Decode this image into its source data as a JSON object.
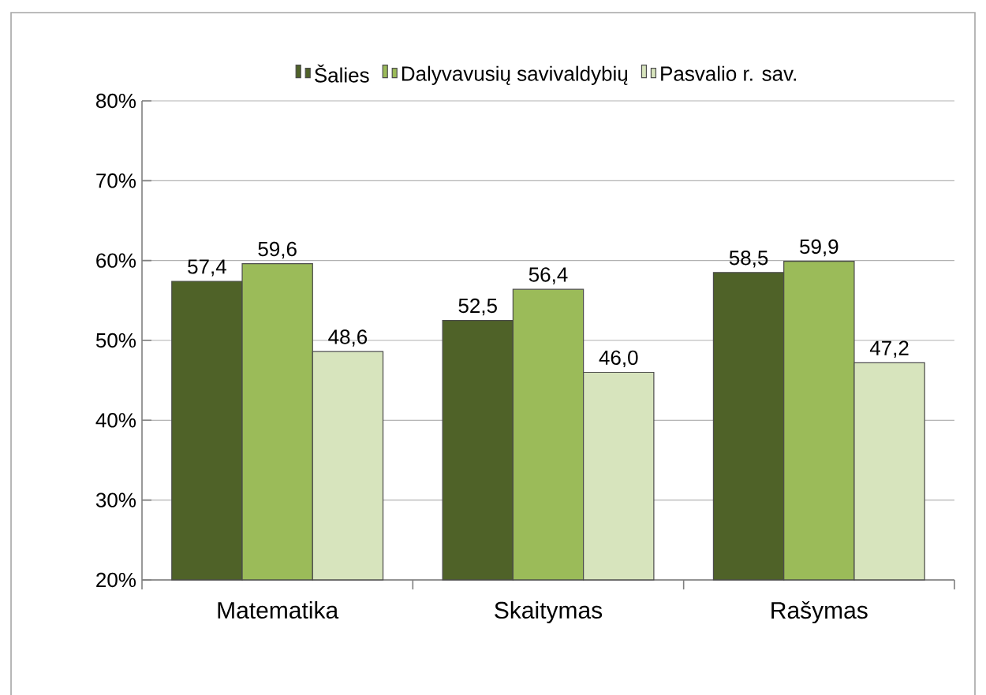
{
  "chart_data": {
    "type": "bar",
    "categories": [
      "Matematika",
      "Skaitymas",
      "Rašymas"
    ],
    "series": [
      {
        "name": "Šalies",
        "color": "#4f6228",
        "values": [
          57.4,
          52.5,
          58.5
        ],
        "value_labels": [
          "57,4",
          "52,5",
          "58,5"
        ]
      },
      {
        "name": "Dalyvavusių savivaldybių",
        "color": "#9bbb59",
        "values": [
          59.6,
          56.4,
          59.9
        ],
        "value_labels": [
          "59,6",
          "56,4",
          "59,9"
        ]
      },
      {
        "name": "Pasvalio r. sav.",
        "color": "#d7e4bd",
        "values": [
          48.6,
          46.0,
          47.2
        ],
        "value_labels": [
          "48,6",
          "46,0",
          "47,2"
        ]
      }
    ],
    "ylim": [
      20,
      80
    ],
    "yticks": [
      {
        "value": 20,
        "label": "20%"
      },
      {
        "value": 30,
        "label": "30%"
      },
      {
        "value": 40,
        "label": "40%"
      },
      {
        "value": 50,
        "label": "50%"
      },
      {
        "value": 60,
        "label": "60%"
      },
      {
        "value": 70,
        "label": "70%"
      },
      {
        "value": 80,
        "label": "80%"
      }
    ],
    "grid": "y",
    "legend": "top"
  }
}
